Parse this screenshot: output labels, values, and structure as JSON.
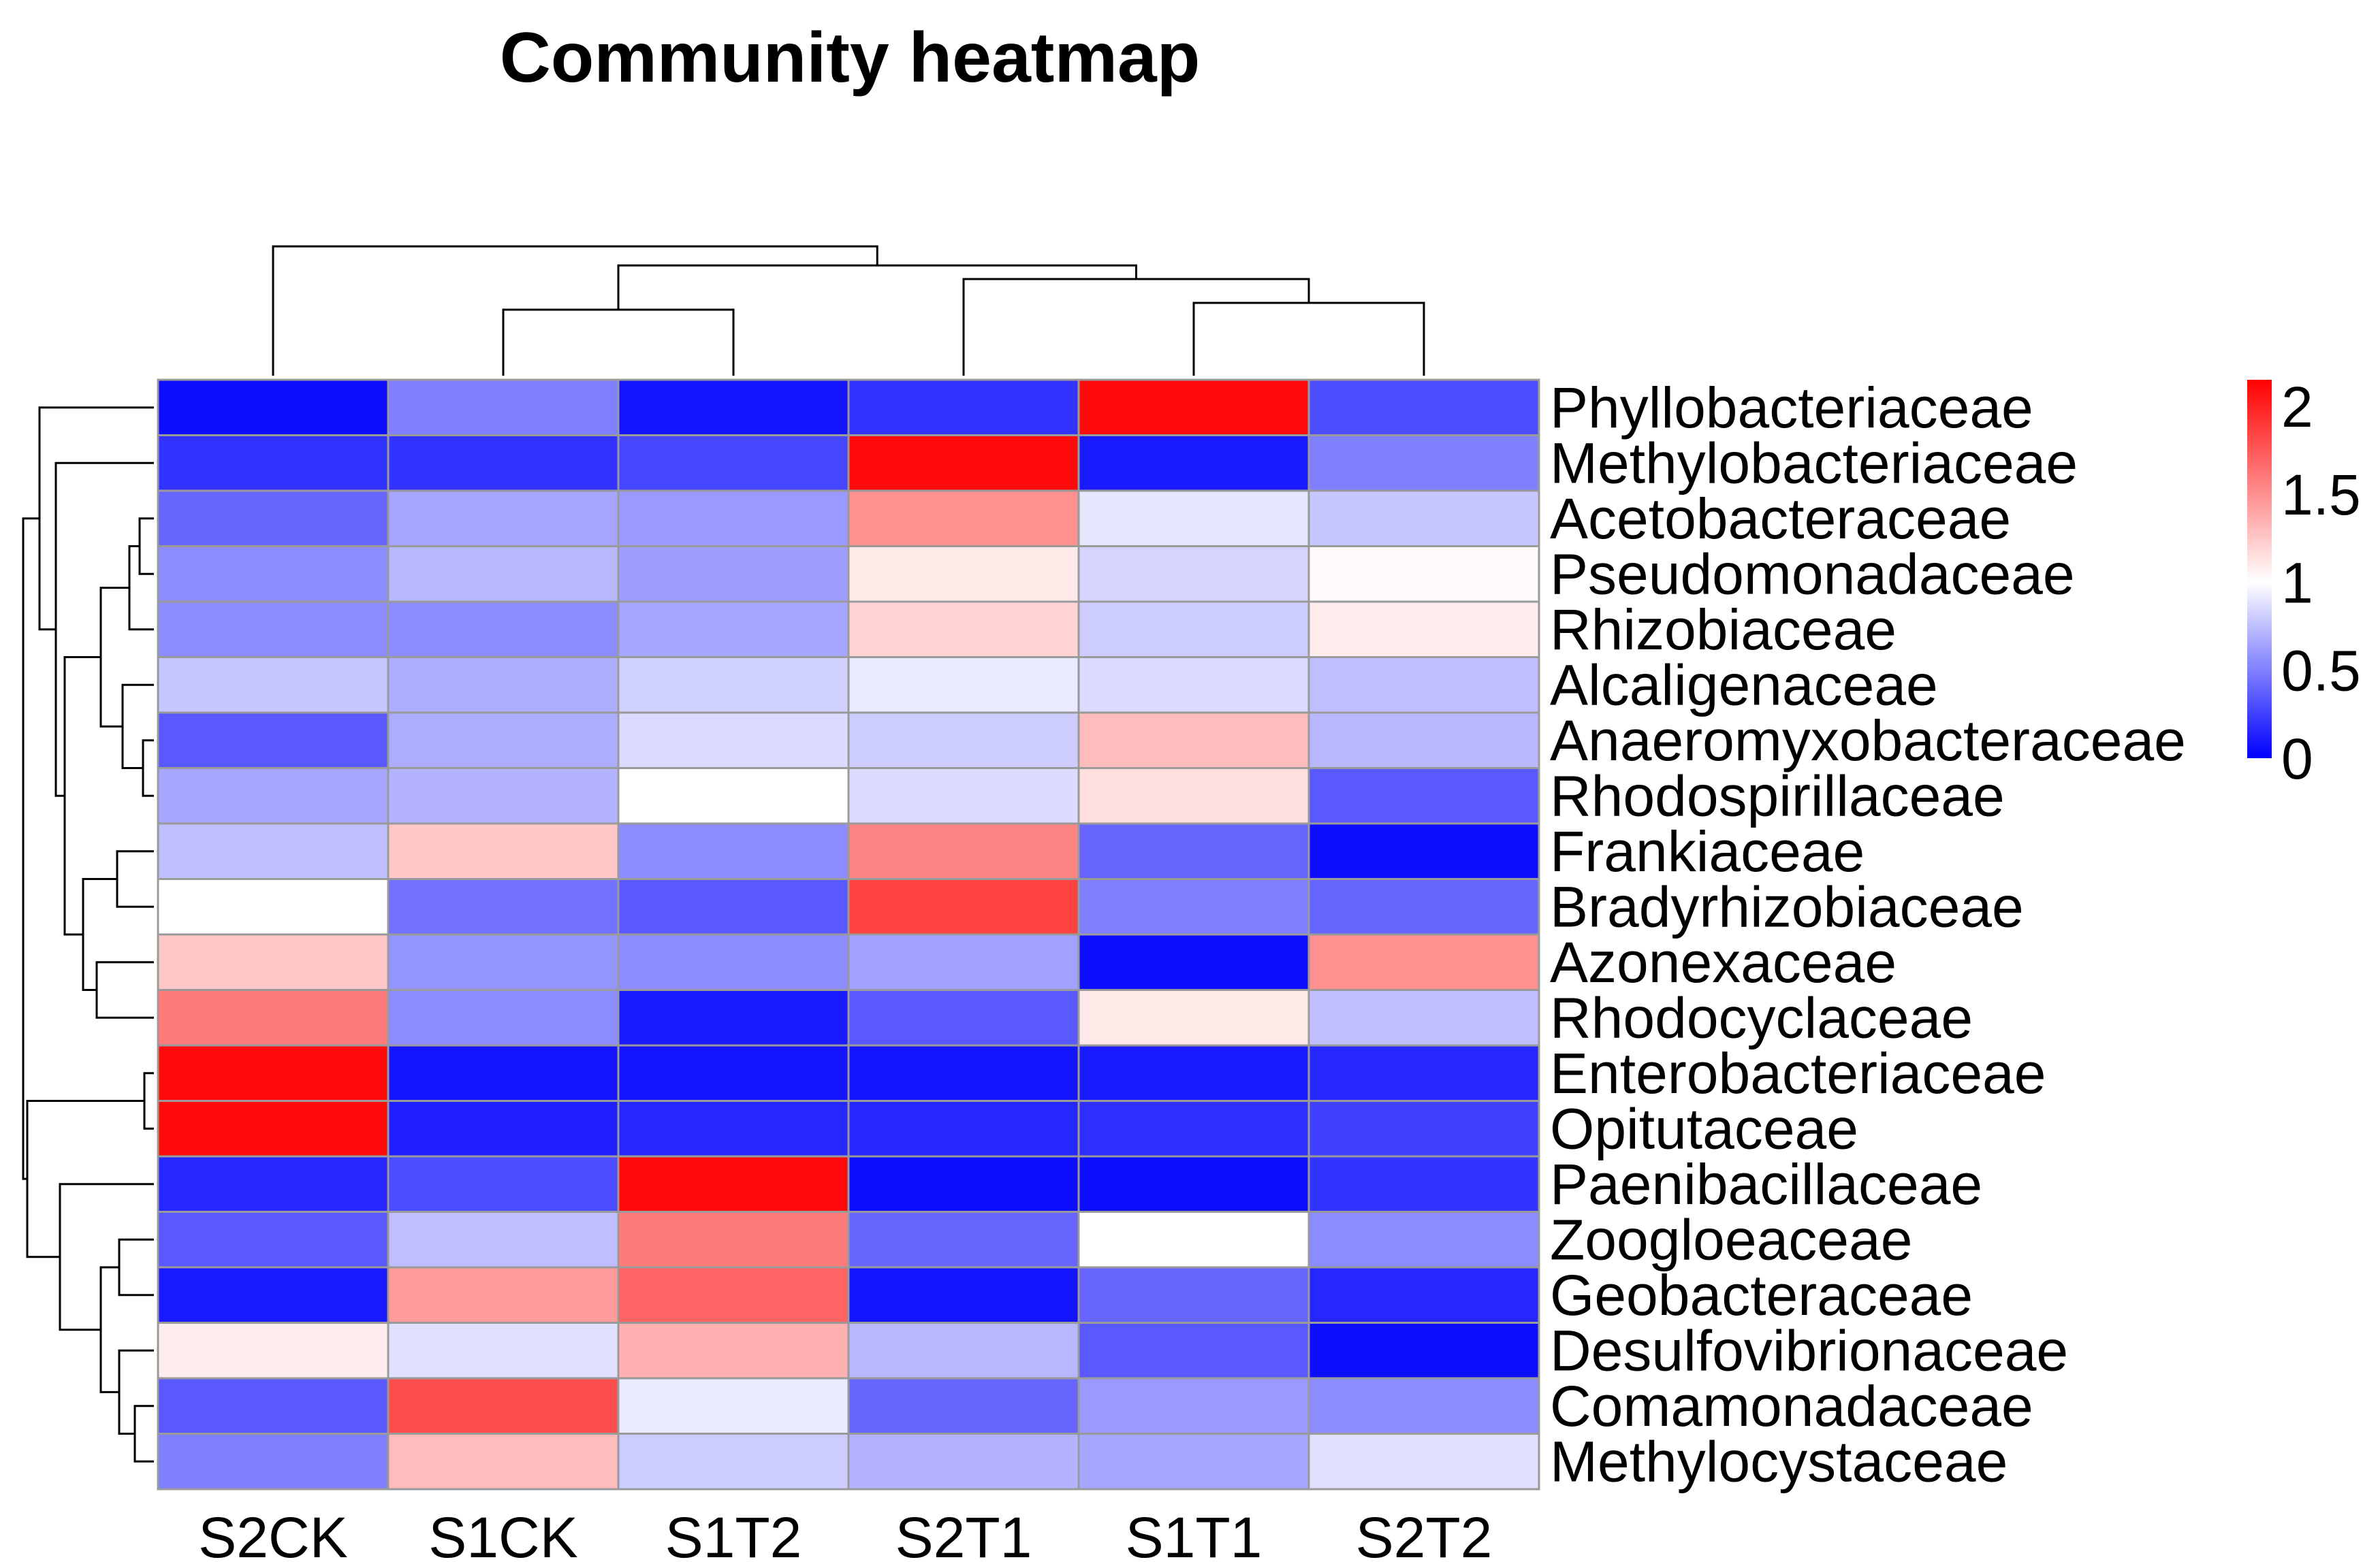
{
  "chart_data": {
    "type": "heatmap",
    "title": "Community heatmap",
    "columns": [
      "S2CK",
      "S1CK",
      "S1T2",
      "S2T1",
      "S1T1",
      "S2T2"
    ],
    "rows": [
      "Phyllobacteriaceae",
      "Methylobacteriaceae",
      "Acetobacteraceae",
      "Pseudomonadaceae",
      "Rhizobiaceae",
      "Alcaligenaceae",
      "Anaeromyxobacteraceae",
      "Rhodospirillaceae",
      "Frankiaceae",
      "Bradyrhizobiaceae",
      "Azonexaceae",
      "Rhodocyclaceae",
      "Enterobacteriaceae",
      "Opitutaceae",
      "Paenibacillaceae",
      "Zoogloeaceae",
      "Geobacteraceae",
      "Desulfovibrionaceae",
      "Comamonadaceae",
      "Methylocystaceae"
    ],
    "values": [
      [
        0.05,
        0.5,
        0.08,
        0.2,
        2.1,
        0.3
      ],
      [
        0.2,
        0.2,
        0.28,
        2.1,
        0.1,
        0.5
      ],
      [
        0.4,
        0.65,
        0.6,
        1.5,
        0.9,
        0.78
      ],
      [
        0.55,
        0.72,
        0.62,
        1.1,
        0.83,
        1.02
      ],
      [
        0.55,
        0.55,
        0.65,
        1.2,
        0.8,
        1.08
      ],
      [
        0.78,
        0.68,
        0.82,
        0.92,
        0.86,
        0.75
      ],
      [
        0.35,
        0.68,
        0.86,
        0.8,
        1.3,
        0.72
      ],
      [
        0.65,
        0.7,
        1.0,
        0.86,
        1.15,
        0.35
      ],
      [
        0.75,
        1.25,
        0.55,
        1.55,
        0.4,
        0.05
      ],
      [
        1.0,
        0.45,
        0.35,
        1.85,
        0.5,
        0.4
      ],
      [
        1.25,
        0.58,
        0.55,
        0.63,
        0.05,
        1.5
      ],
      [
        1.6,
        0.55,
        0.1,
        0.35,
        1.1,
        0.75
      ],
      [
        2.1,
        0.08,
        0.08,
        0.08,
        0.1,
        0.15
      ],
      [
        2.1,
        0.12,
        0.15,
        0.15,
        0.18,
        0.25
      ],
      [
        0.15,
        0.3,
        2.1,
        0.05,
        0.05,
        0.2
      ],
      [
        0.35,
        0.75,
        1.6,
        0.4,
        1.0,
        0.55
      ],
      [
        0.1,
        1.45,
        1.7,
        0.08,
        0.4,
        0.15
      ],
      [
        1.08,
        0.88,
        1.35,
        0.72,
        0.35,
        0.05
      ],
      [
        0.35,
        1.8,
        0.92,
        0.4,
        0.6,
        0.55
      ],
      [
        0.5,
        1.3,
        0.8,
        0.7,
        0.65,
        0.88
      ]
    ],
    "color_scale": {
      "min": 0,
      "mid": 1,
      "max": 2.15,
      "low_color": "#0000ff",
      "mid_color": "#ffffff",
      "high_color": "#ff0000"
    },
    "legend": {
      "position": "right",
      "ticks": [
        0,
        0.5,
        1,
        1.5,
        2
      ],
      "tick_labels": [
        "0",
        "0.5",
        "1",
        "1.5",
        "2"
      ]
    }
  }
}
